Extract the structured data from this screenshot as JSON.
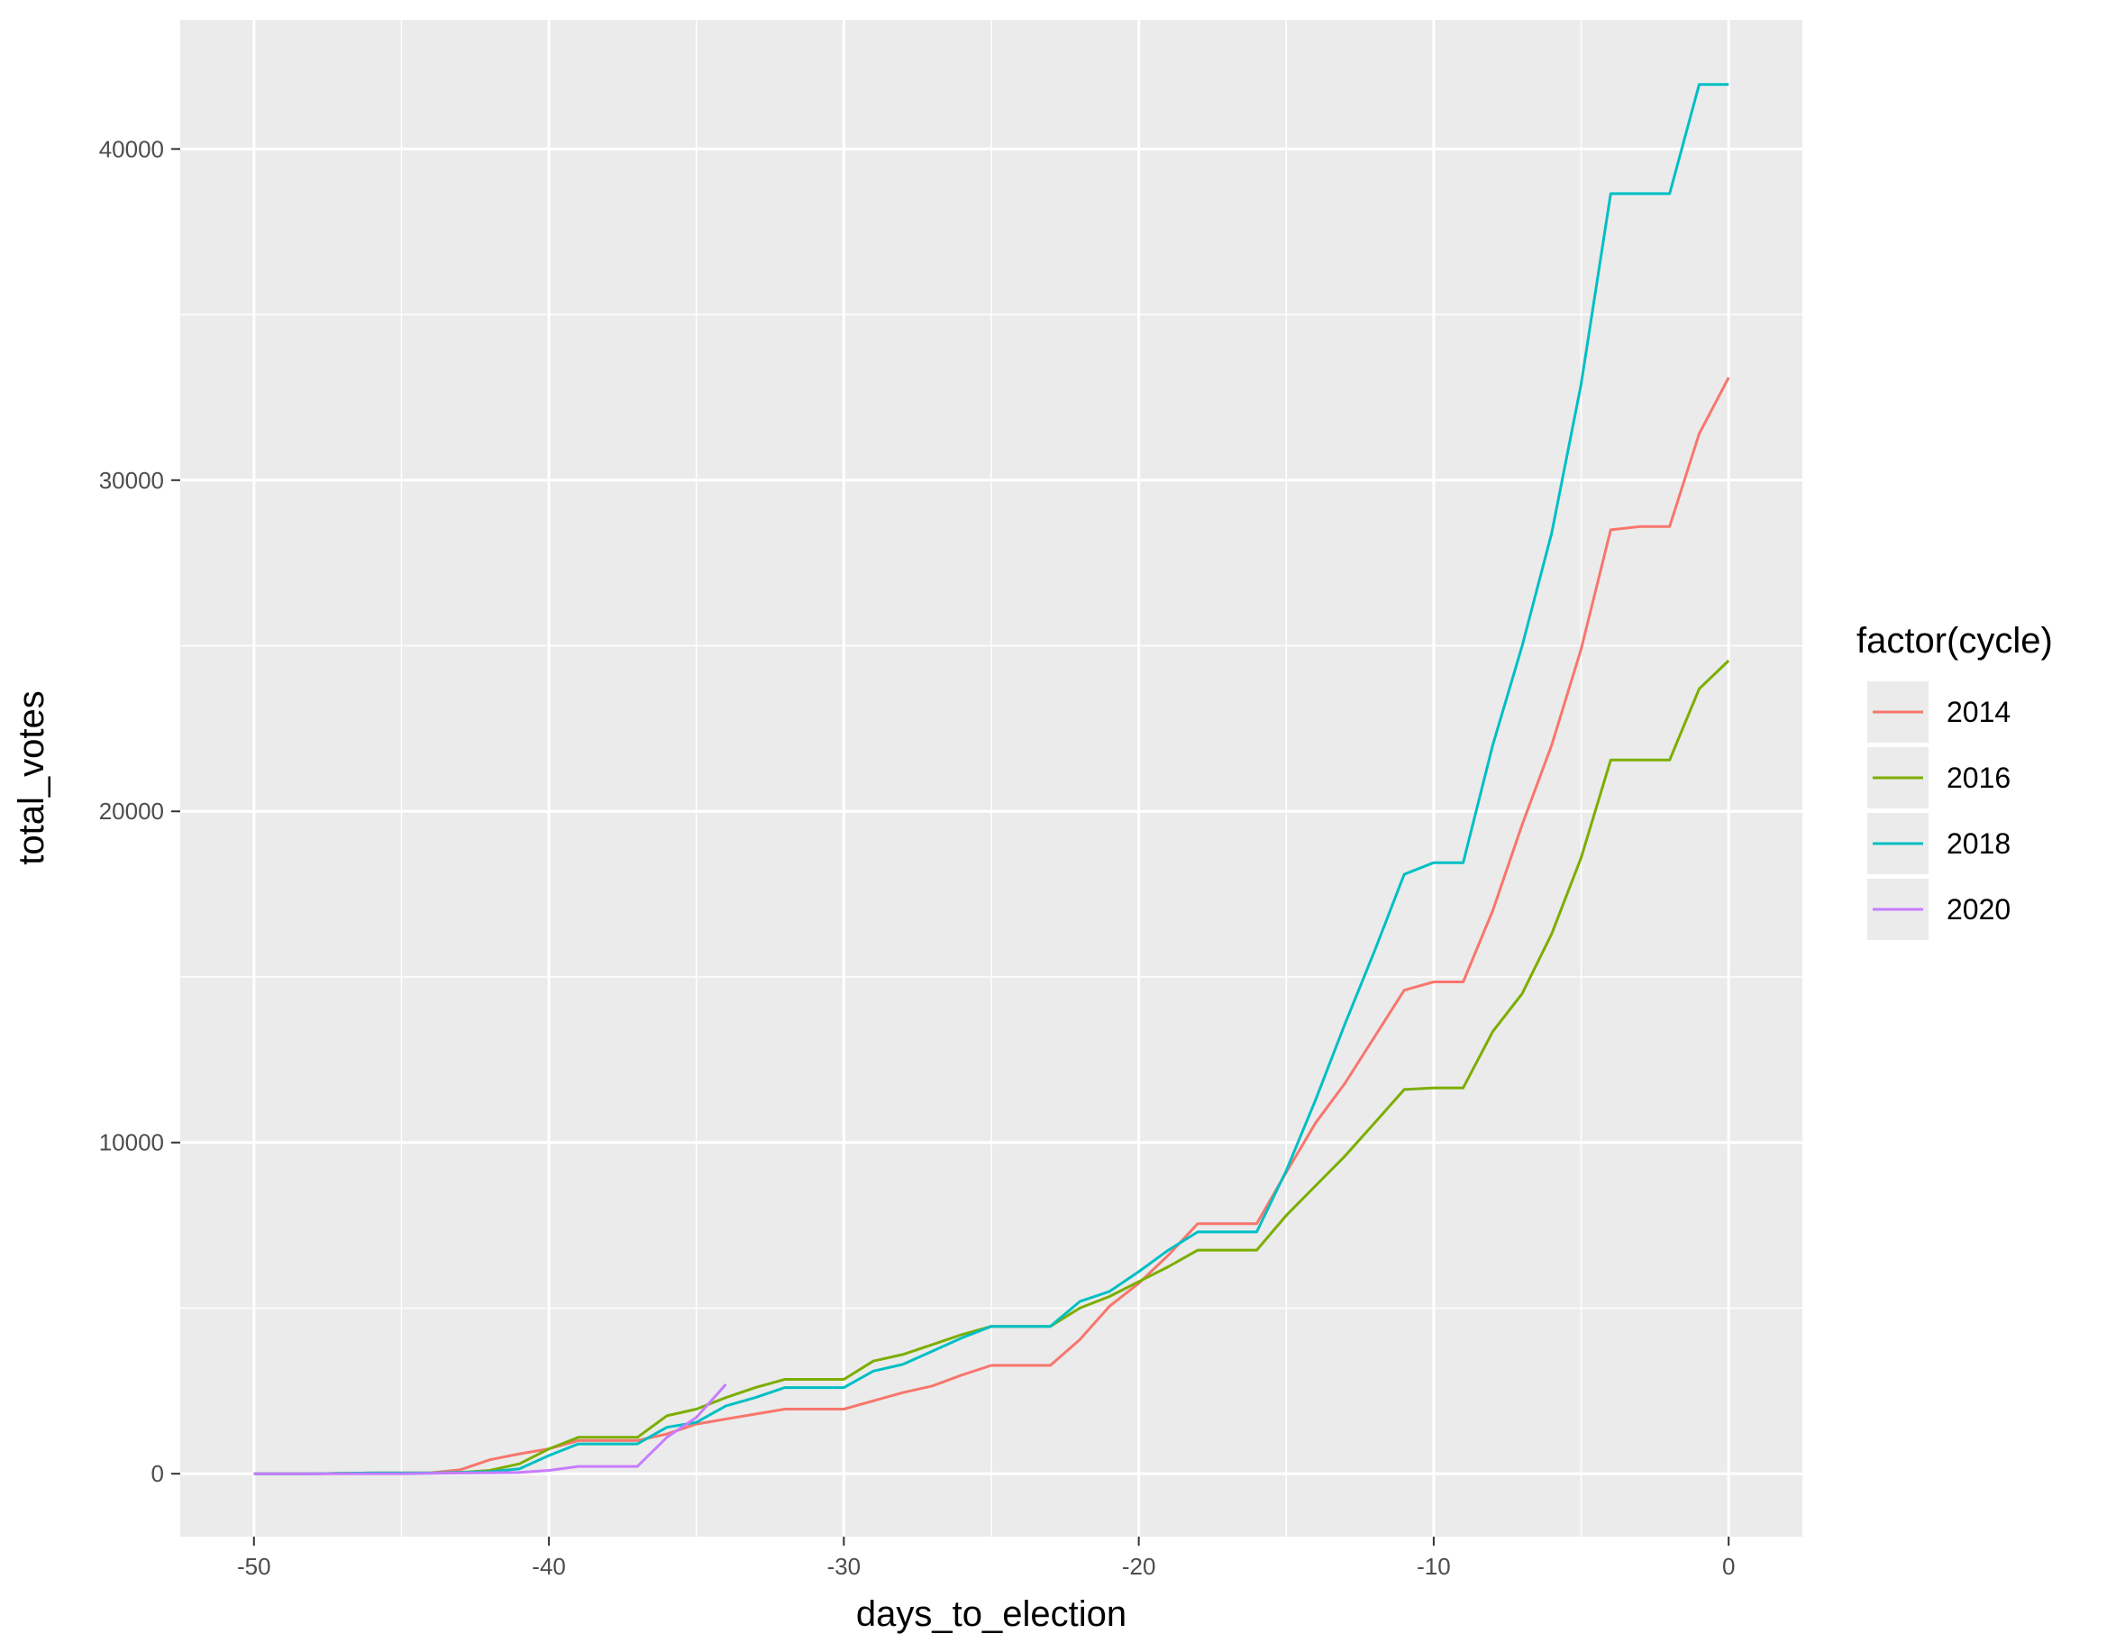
{
  "chart_data": {
    "type": "line",
    "xlabel": "days_to_election",
    "ylabel": "total_votes",
    "xlim": [
      -52.5,
      2.5
    ],
    "ylim": [
      -1900,
      43900
    ],
    "x_ticks": [
      -50,
      -40,
      -30,
      -20,
      -10,
      0
    ],
    "x_tick_labels": [
      "-50",
      "-40",
      "-30",
      "-20",
      "-10",
      "0"
    ],
    "x_minor_ticks": [
      -45,
      -35,
      -25,
      -15,
      -5
    ],
    "y_ticks": [
      0,
      10000,
      20000,
      30000,
      40000
    ],
    "y_tick_labels": [
      "0",
      "10000",
      "20000",
      "30000",
      "40000"
    ],
    "y_minor_ticks": [
      5000,
      15000,
      25000,
      35000
    ],
    "grid": true,
    "legend": {
      "title": "factor(cycle)",
      "position": "right"
    },
    "series": [
      {
        "name": "2014",
        "color": "#F8766D",
        "x": [
          -50,
          -49,
          -48,
          -47,
          -46,
          -45,
          -44,
          -43,
          -42,
          -41,
          -40,
          -39,
          -38,
          -37,
          -36,
          -35,
          -34,
          -33,
          -32,
          -31,
          -30,
          -29,
          -28,
          -27,
          -26,
          -25,
          -24,
          -23,
          -22,
          -21,
          -20,
          -19,
          -18,
          -17,
          -16,
          -15,
          -14,
          -13,
          -12,
          -11,
          -10,
          -9,
          -8,
          -7,
          -6,
          -5,
          -4,
          -3,
          -2,
          -1,
          0
        ],
        "y": [
          0,
          0,
          0,
          10,
          20,
          20,
          30,
          120,
          420,
          600,
          750,
          1000,
          1000,
          1000,
          1200,
          1500,
          1650,
          1800,
          1950,
          1950,
          1950,
          2200,
          2450,
          2650,
          2980,
          3270,
          3270,
          3270,
          4050,
          5050,
          5750,
          6600,
          7550,
          7550,
          7550,
          9100,
          10600,
          11800,
          13200,
          14600,
          14850,
          14850,
          17000,
          19600,
          22000,
          24900,
          28500,
          28600,
          28600,
          31400,
          33100
        ]
      },
      {
        "name": "2016",
        "color": "#7CAE00",
        "x": [
          -50,
          -49,
          -48,
          -47,
          -46,
          -45,
          -44,
          -43,
          -42,
          -41,
          -40,
          -39,
          -38,
          -37,
          -36,
          -35,
          -34,
          -33,
          -32,
          -31,
          -30,
          -29,
          -28,
          -27,
          -26,
          -25,
          -24,
          -23,
          -22,
          -21,
          -20,
          -19,
          -18,
          -17,
          -16,
          -15,
          -14,
          -13,
          -12,
          -11,
          -10,
          -9,
          -8,
          -7,
          -6,
          -5,
          -4,
          -3,
          -2,
          -1,
          0
        ],
        "y": [
          0,
          0,
          0,
          10,
          20,
          20,
          20,
          40,
          100,
          300,
          750,
          1100,
          1100,
          1100,
          1750,
          1950,
          2300,
          2600,
          2850,
          2850,
          2850,
          3400,
          3600,
          3900,
          4200,
          4450,
          4450,
          4450,
          5000,
          5350,
          5800,
          6250,
          6750,
          6750,
          6750,
          7800,
          8700,
          9600,
          10600,
          11600,
          11650,
          11650,
          13350,
          14500,
          16300,
          18600,
          21550,
          21550,
          21550,
          23700,
          24550
        ]
      },
      {
        "name": "2018",
        "color": "#00BFC4",
        "x": [
          -50,
          -49,
          -48,
          -47,
          -46,
          -45,
          -44,
          -43,
          -42,
          -41,
          -40,
          -39,
          -38,
          -37,
          -36,
          -35,
          -34,
          -33,
          -32,
          -31,
          -30,
          -29,
          -28,
          -27,
          -26,
          -25,
          -24,
          -23,
          -22,
          -21,
          -20,
          -19,
          -18,
          -17,
          -16,
          -15,
          -14,
          -13,
          -12,
          -11,
          -10,
          -9,
          -8,
          -7,
          -6,
          -5,
          -4,
          -3,
          -2,
          -1,
          0
        ],
        "y": [
          0,
          0,
          0,
          10,
          20,
          20,
          20,
          40,
          60,
          150,
          550,
          900,
          900,
          900,
          1400,
          1550,
          2050,
          2300,
          2600,
          2600,
          2600,
          3100,
          3300,
          3700,
          4100,
          4450,
          4450,
          4450,
          5200,
          5500,
          6100,
          6750,
          7300,
          7300,
          7300,
          9150,
          11300,
          13600,
          15800,
          18100,
          18450,
          18450,
          22000,
          25000,
          28400,
          32900,
          38650,
          38650,
          38650,
          41950,
          41950
        ]
      },
      {
        "name": "2020",
        "color": "#C77CFF",
        "x": [
          -50,
          -49,
          -48,
          -47,
          -46,
          -45,
          -44,
          -43,
          -42,
          -41,
          -40,
          -39,
          -38,
          -37,
          -36,
          -35,
          -34
        ],
        "y": [
          0,
          0,
          0,
          0,
          0,
          0,
          10,
          20,
          30,
          40,
          100,
          220,
          220,
          220,
          1100,
          1700,
          2700
        ]
      }
    ]
  }
}
